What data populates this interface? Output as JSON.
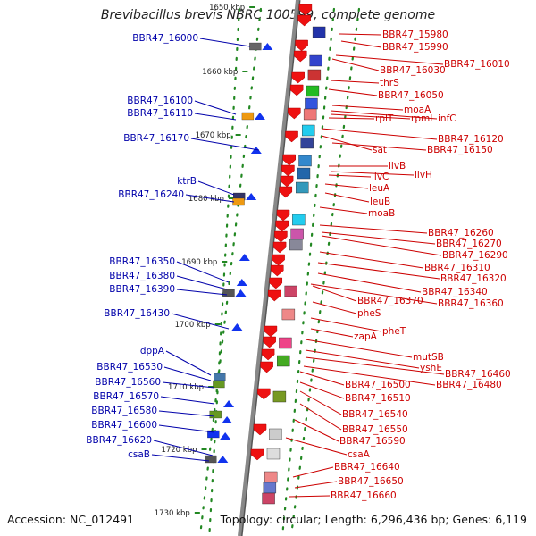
{
  "title": "Brevibacillus brevis NBRC 100599, complete genome",
  "accession": "Accession: NC_012491",
  "topology": "Topology: circular; Length: 6,296,436 bp; Genes: 6,119",
  "colors": {
    "left_label": "#0000aa",
    "right_label": "#cc0000",
    "backbone": "#888888",
    "gc_dots": "#228822"
  },
  "scale_labels": [
    "1650 kbp",
    "1660 kbp",
    "1670 kbp",
    "1680 kbp",
    "1690 kbp",
    "1700 kbp",
    "1710 kbp",
    "1720 kbp",
    "1730 kbp"
  ],
  "left_genes": [
    "BBR47_16000",
    "BBR47_16100",
    "BBR47_16110",
    "BBR47_16170",
    "ktrB",
    "BBR47_16240",
    "BBR47_16350",
    "BBR47_16380",
    "BBR47_16390",
    "BBR47_16430",
    "dppA",
    "BBR47_16530",
    "BBR47_16560",
    "BBR47_16570",
    "BBR47_16580",
    "BBR47_16600",
    "BBR47_16620",
    "csaB"
  ],
  "right_genes": [
    "BBR47_15980",
    "BBR47_15990",
    "BBR47_16010",
    "BBR47_16030",
    "thrS",
    "BBR47_16050",
    "moaA",
    "infC",
    "rpmI",
    "rplT",
    "BBR47_16120",
    "sat",
    "BBR47_16150",
    "ilvB",
    "ilvH",
    "ilvC",
    "leuA",
    "leuB",
    "moaB",
    "BBR47_16260",
    "BBR47_16270",
    "BBR47_16290",
    "BBR47_16310",
    "BBR47_16320",
    "BBR47_16340",
    "BBR47_16370",
    "BBR47_16360",
    "pheS",
    "pheT",
    "zapA",
    "mutSB",
    "yshE",
    "BBR47_16460",
    "BBR47_16480",
    "BBR47_16500",
    "BBR47_16510",
    "BBR47_16540",
    "BBR47_16550",
    "BBR47_16590",
    "csaA",
    "BBR47_16640",
    "BBR47_16650",
    "BBR47_16660"
  ]
}
